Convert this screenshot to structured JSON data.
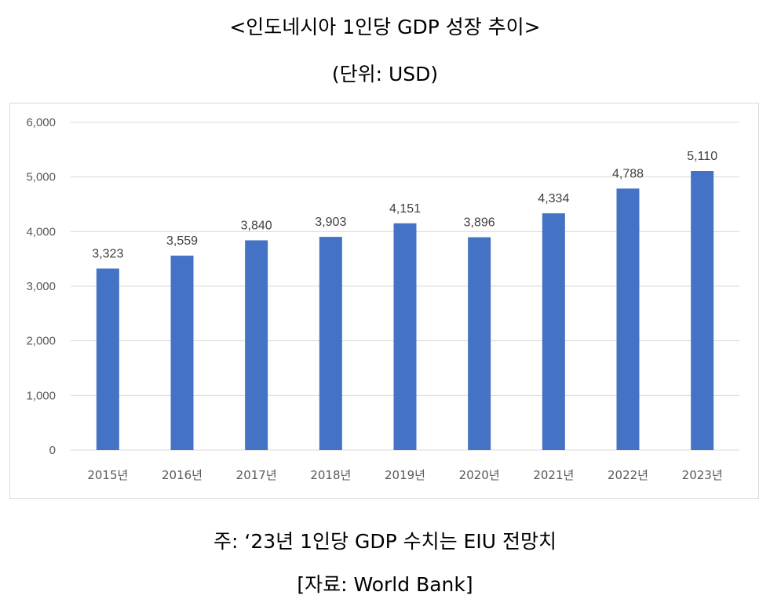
{
  "header": {
    "title": "<인도네시아 1인당 GDP 성장 추이>",
    "unit": "(단위: USD)"
  },
  "footer": {
    "note": "주: ‘23년 1인당 GDP 수치는 EIU 전망치",
    "source": "[자료: World Bank]"
  },
  "colors": {
    "bar": "#4472c4",
    "grid": "#d9d9d9"
  },
  "chart_data": {
    "type": "bar",
    "categories": [
      "2015년",
      "2016년",
      "2017년",
      "2018년",
      "2019년",
      "2020년",
      "2021년",
      "2022년",
      "2023년"
    ],
    "values": [
      3323,
      3559,
      3840,
      3903,
      4151,
      3896,
      4334,
      4788,
      5110
    ],
    "value_labels": [
      "3,323",
      "3,559",
      "3,840",
      "3,903",
      "4,151",
      "3,896",
      "4,334",
      "4,788",
      "5,110"
    ],
    "ylim": [
      0,
      6000
    ],
    "yticks": [
      0,
      1000,
      2000,
      3000,
      4000,
      5000,
      6000
    ],
    "ytick_labels": [
      "0",
      "1,000",
      "2,000",
      "3,000",
      "4,000",
      "5,000",
      "6,000"
    ],
    "grid": true,
    "legend": false
  }
}
